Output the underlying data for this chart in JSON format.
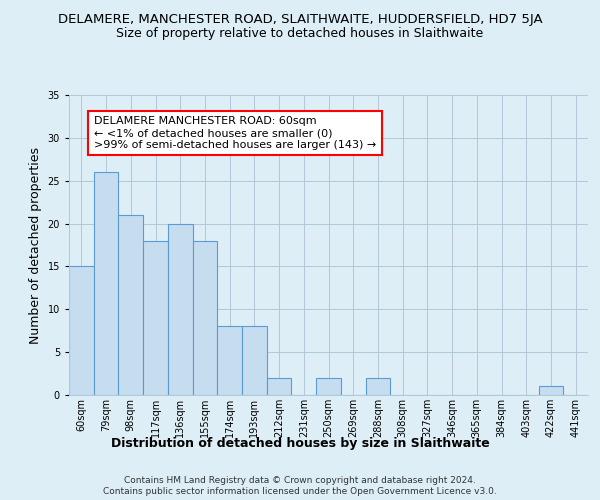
{
  "title": "DELAMERE, MANCHESTER ROAD, SLAITHWAITE, HUDDERSFIELD, HD7 5JA",
  "subtitle": "Size of property relative to detached houses in Slaithwaite",
  "xlabel": "Distribution of detached houses by size in Slaithwaite",
  "ylabel": "Number of detached properties",
  "bins": [
    "60sqm",
    "79sqm",
    "98sqm",
    "117sqm",
    "136sqm",
    "155sqm",
    "174sqm",
    "193sqm",
    "212sqm",
    "231sqm",
    "250sqm",
    "269sqm",
    "288sqm",
    "308sqm",
    "327sqm",
    "346sqm",
    "365sqm",
    "384sqm",
    "403sqm",
    "422sqm",
    "441sqm"
  ],
  "values": [
    15,
    26,
    21,
    18,
    20,
    18,
    8,
    8,
    2,
    0,
    2,
    0,
    2,
    0,
    0,
    0,
    0,
    0,
    0,
    1,
    0
  ],
  "bar_color": "#c6ddf0",
  "bar_edge_color": "#5b9bd5",
  "annotation_title": "DELAMERE MANCHESTER ROAD: 60sqm",
  "annotation_line1": "← <1% of detached houses are smaller (0)",
  "annotation_line2": ">99% of semi-detached houses are larger (143) →",
  "ylim": [
    0,
    35
  ],
  "yticks": [
    0,
    5,
    10,
    15,
    20,
    25,
    30,
    35
  ],
  "footer1": "Contains HM Land Registry data © Crown copyright and database right 2024.",
  "footer2": "Contains public sector information licensed under the Open Government Licence v3.0.",
  "bg_color": "#ddeef6",
  "plot_bg_color": "#ddeef6",
  "grid_color": "#b0c8d8",
  "title_fontsize": 9.5,
  "subtitle_fontsize": 9,
  "axis_label_fontsize": 9,
  "tick_fontsize": 7,
  "footer_fontsize": 6.5,
  "ann_fontsize": 8
}
